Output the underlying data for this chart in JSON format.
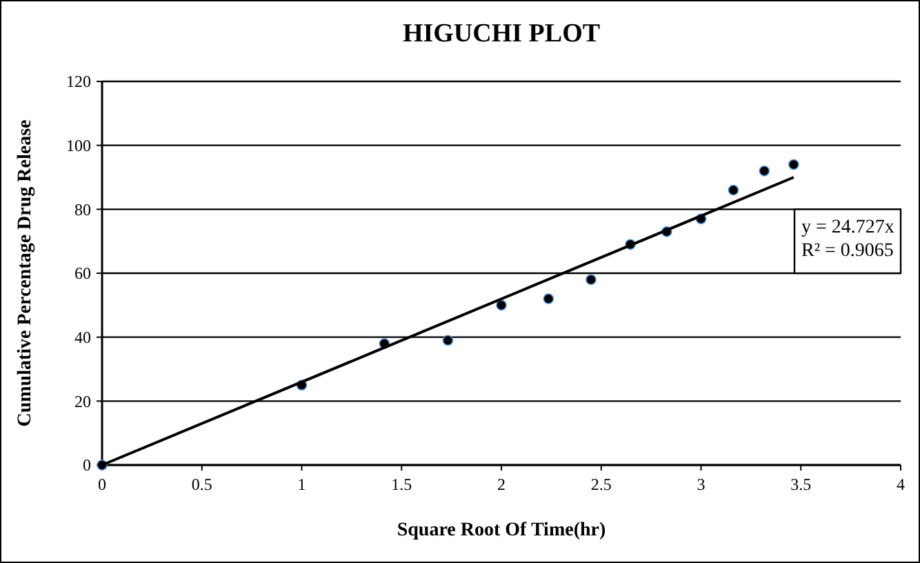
{
  "chart_data": {
    "type": "scatter",
    "title": "HIGUCHI PLOT",
    "xlabel": "Square Root Of Time(hr)",
    "ylabel": "Cumulative Percentage Drug Release",
    "x": [
      0,
      1,
      1.414,
      1.732,
      2,
      2.236,
      2.449,
      2.646,
      2.828,
      3,
      3.162,
      3.317,
      3.464
    ],
    "series": [
      {
        "color": "#000000",
        "values": [
          0,
          25,
          38,
          39,
          50,
          52,
          58,
          69,
          73,
          77,
          86,
          92,
          94
        ]
      },
      {
        "type": "line",
        "marker": "none",
        "color": "#000000",
        "x": [
          0,
          3.464
        ],
        "values": [
          0,
          90
        ]
      }
    ],
    "xlim": [
      0,
      4
    ],
    "xticks": [
      0,
      0.5,
      1,
      1.5,
      2,
      2.5,
      3,
      3.5,
      4
    ],
    "ylim": [
      0,
      120
    ],
    "yticks": [
      0,
      20,
      40,
      60,
      80,
      100,
      120
    ],
    "grid": "y",
    "marker": "circle",
    "annotations": [
      "y = 24.727x",
      "R² = 0.9065"
    ]
  }
}
